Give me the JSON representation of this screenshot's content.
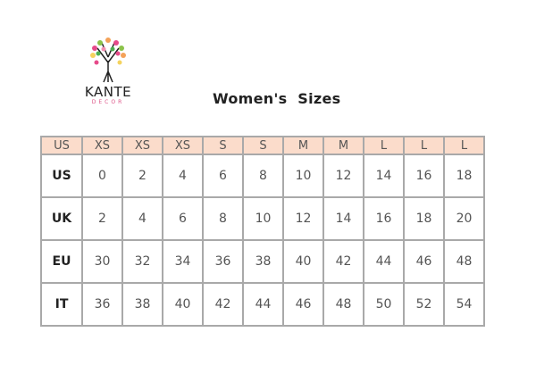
{
  "logo": {
    "brand": "KANTE",
    "sub": "DECOR"
  },
  "title": "Women's  Sizes",
  "table": {
    "header": [
      "US",
      "XS",
      "XS",
      "XS",
      "S",
      "S",
      "M",
      "M",
      "L",
      "L",
      "L"
    ],
    "rows": [
      {
        "label": "US",
        "values": [
          "0",
          "2",
          "4",
          "6",
          "8",
          "10",
          "12",
          "14",
          "16",
          "18"
        ]
      },
      {
        "label": "UK",
        "values": [
          "2",
          "4",
          "6",
          "8",
          "10",
          "12",
          "14",
          "16",
          "18",
          "20"
        ]
      },
      {
        "label": "EU",
        "values": [
          "30",
          "32",
          "34",
          "36",
          "38",
          "40",
          "42",
          "44",
          "46",
          "48"
        ]
      },
      {
        "label": "IT",
        "values": [
          "36",
          "38",
          "40",
          "42",
          "44",
          "46",
          "48",
          "50",
          "52",
          "54"
        ]
      }
    ]
  },
  "colors": {
    "header_bg": "#fbdccb",
    "border": "#a9a9a9"
  }
}
